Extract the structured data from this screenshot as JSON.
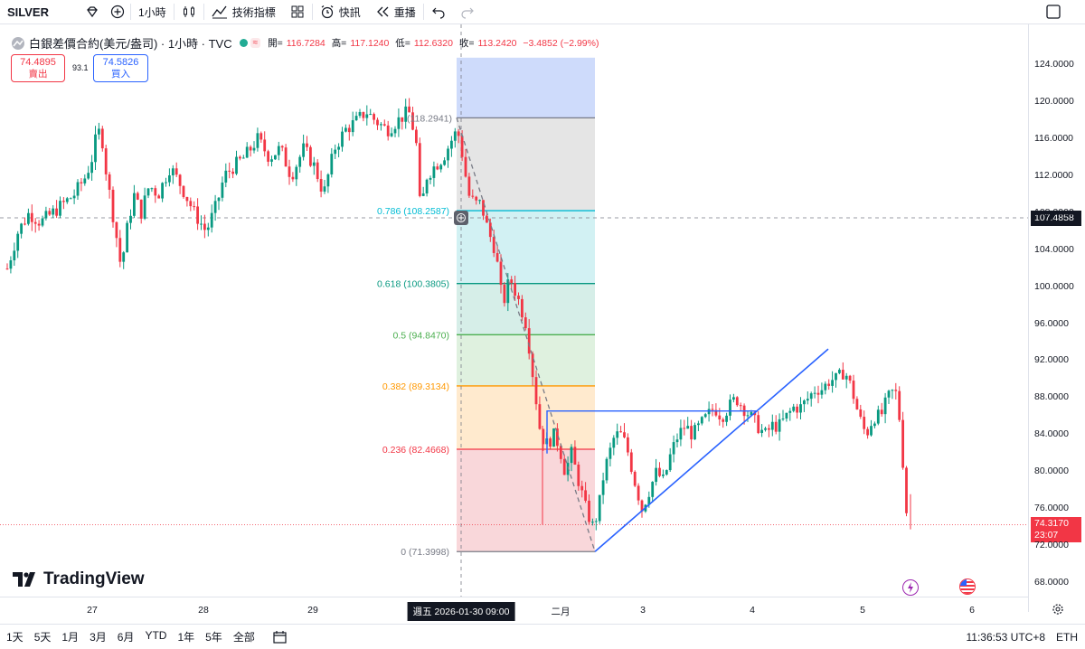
{
  "toolbar": {
    "symbol": "SILVER",
    "interval": "1小時",
    "indicators_label": "技術指標",
    "alert_label": "快訊",
    "replay_label": "重播"
  },
  "legend": {
    "title": "白銀差價合約(美元/盎司) · 1小時 · TVC",
    "open_label": "開=",
    "open": "116.7284",
    "high_label": "高=",
    "high": "117.1240",
    "low_label": "低=",
    "low": "112.6320",
    "close_label": "收=",
    "close": "113.2420",
    "change": "−3.4852 (−2.99%)"
  },
  "trade": {
    "sell_price": "74.4895",
    "sell_label": "賣出",
    "spread": "93.1",
    "buy_price": "74.5826",
    "buy_label": "買入"
  },
  "fib_levels": [
    {
      "label": "0.786 (108.2587)",
      "color": "#00bcd4"
    },
    {
      "label": "0.618 (100.3805)",
      "color": "#089981"
    },
    {
      "label": "0.5 (94.8470)",
      "color": "#4caf50"
    },
    {
      "label": "0.382 (89.3134)",
      "color": "#ff9800"
    },
    {
      "label": "0.236 (82.4668)",
      "color": "#f23645"
    },
    {
      "label": "0 (71.3998)",
      "color": "#787b86"
    }
  ],
  "fib_top_label": "(118.2941)",
  "y_axis": {
    "ticks": [
      "124.0000",
      "120.0000",
      "116.0000",
      "112.0000",
      "108.0000",
      "104.0000",
      "100.0000",
      "96.0000",
      "92.0000",
      "88.0000",
      "84.0000",
      "80.0000",
      "76.0000",
      "72.0000",
      "68.0000"
    ],
    "crosshair_price": "107.4858",
    "last_price": "74.3170",
    "countdown": "23:07"
  },
  "x_axis": {
    "ticks": [
      "27",
      "28",
      "29",
      "二月",
      "3",
      "4",
      "5",
      "6"
    ],
    "cursor_label": "週五 2026-01-30   09:00"
  },
  "logo_text": "TradingView",
  "bottombar": {
    "ranges": [
      "1天",
      "5天",
      "1月",
      "3月",
      "6月",
      "YTD",
      "1年",
      "5年",
      "全部"
    ],
    "time": "11:36:53 UTC+8",
    "session": "ETH"
  },
  "colors": {
    "up": "#089981",
    "down": "#f23645",
    "trendline": "#2962ff"
  }
}
